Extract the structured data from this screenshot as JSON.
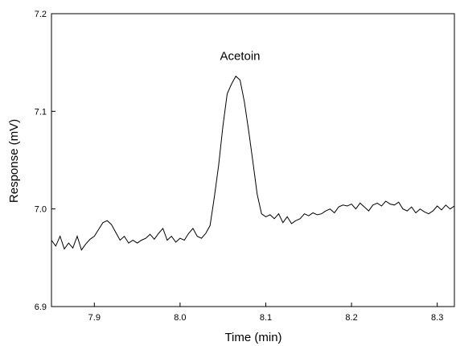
{
  "chart_data": {
    "type": "line",
    "title": "",
    "xlabel": "Time (min)",
    "ylabel": "Response (mV)",
    "xlim": [
      7.85,
      8.32
    ],
    "ylim": [
      6.9,
      7.2
    ],
    "x_ticks": [
      7.9,
      8.0,
      8.1,
      8.2,
      8.3
    ],
    "x_tick_labels": [
      "7.9",
      "8.0",
      "8.1",
      "8.2",
      "8.3"
    ],
    "y_ticks": [
      6.9,
      7.0,
      7.1,
      7.2
    ],
    "y_tick_labels": [
      "6.9",
      "7.0",
      "7.1",
      "7.2"
    ],
    "grid": false,
    "line_color": "#000000",
    "annotations": [
      {
        "text": "Acetoin",
        "x": 8.07,
        "y": 7.15
      }
    ],
    "series": [
      {
        "x": [
          7.85,
          7.855,
          7.86,
          7.865,
          7.87,
          7.875,
          7.88,
          7.885,
          7.89,
          7.895,
          7.9,
          7.905,
          7.91,
          7.915,
          7.92,
          7.925,
          7.93,
          7.935,
          7.94,
          7.945,
          7.95,
          7.955,
          7.96,
          7.965,
          7.97,
          7.975,
          7.98,
          7.985,
          7.99,
          7.995,
          8.0,
          8.005,
          8.01,
          8.015,
          8.02,
          8.025,
          8.03,
          8.035,
          8.04,
          8.045,
          8.05,
          8.055,
          8.06,
          8.065,
          8.07,
          8.075,
          8.08,
          8.085,
          8.09,
          8.095,
          8.1,
          8.105,
          8.11,
          8.115,
          8.12,
          8.125,
          8.13,
          8.135,
          8.14,
          8.145,
          8.15,
          8.155,
          8.16,
          8.165,
          8.17,
          8.175,
          8.18,
          8.185,
          8.19,
          8.195,
          8.2,
          8.205,
          8.21,
          8.215,
          8.22,
          8.225,
          8.23,
          8.235,
          8.24,
          8.245,
          8.25,
          8.255,
          8.26,
          8.265,
          8.27,
          8.275,
          8.28,
          8.285,
          8.29,
          8.295,
          8.3,
          8.305,
          8.31,
          8.315,
          8.32
        ],
        "y": [
          6.968,
          6.962,
          6.972,
          6.959,
          6.965,
          6.96,
          6.972,
          6.958,
          6.964,
          6.969,
          6.972,
          6.979,
          6.986,
          6.988,
          6.984,
          6.976,
          6.968,
          6.972,
          6.965,
          6.968,
          6.965,
          6.968,
          6.97,
          6.974,
          6.969,
          6.975,
          6.98,
          6.968,
          6.972,
          6.966,
          6.97,
          6.968,
          6.975,
          6.98,
          6.972,
          6.97,
          6.975,
          6.983,
          7.012,
          7.045,
          7.085,
          7.118,
          7.128,
          7.136,
          7.132,
          7.11,
          7.08,
          7.048,
          7.015,
          6.995,
          6.992,
          6.994,
          6.99,
          6.995,
          6.986,
          6.992,
          6.985,
          6.988,
          6.99,
          6.995,
          6.993,
          6.996,
          6.994,
          6.995,
          6.998,
          7.0,
          6.996,
          7.002,
          7.004,
          7.003,
          7.005,
          7.0,
          7.006,
          7.002,
          6.998,
          7.004,
          7.006,
          7.003,
          7.008,
          7.005,
          7.004,
          7.007,
          7.0,
          6.998,
          7.002,
          6.996,
          7.0,
          6.997,
          6.995,
          6.998,
          7.003,
          6.999,
          7.004,
          7.0,
          7.003
        ]
      }
    ]
  }
}
